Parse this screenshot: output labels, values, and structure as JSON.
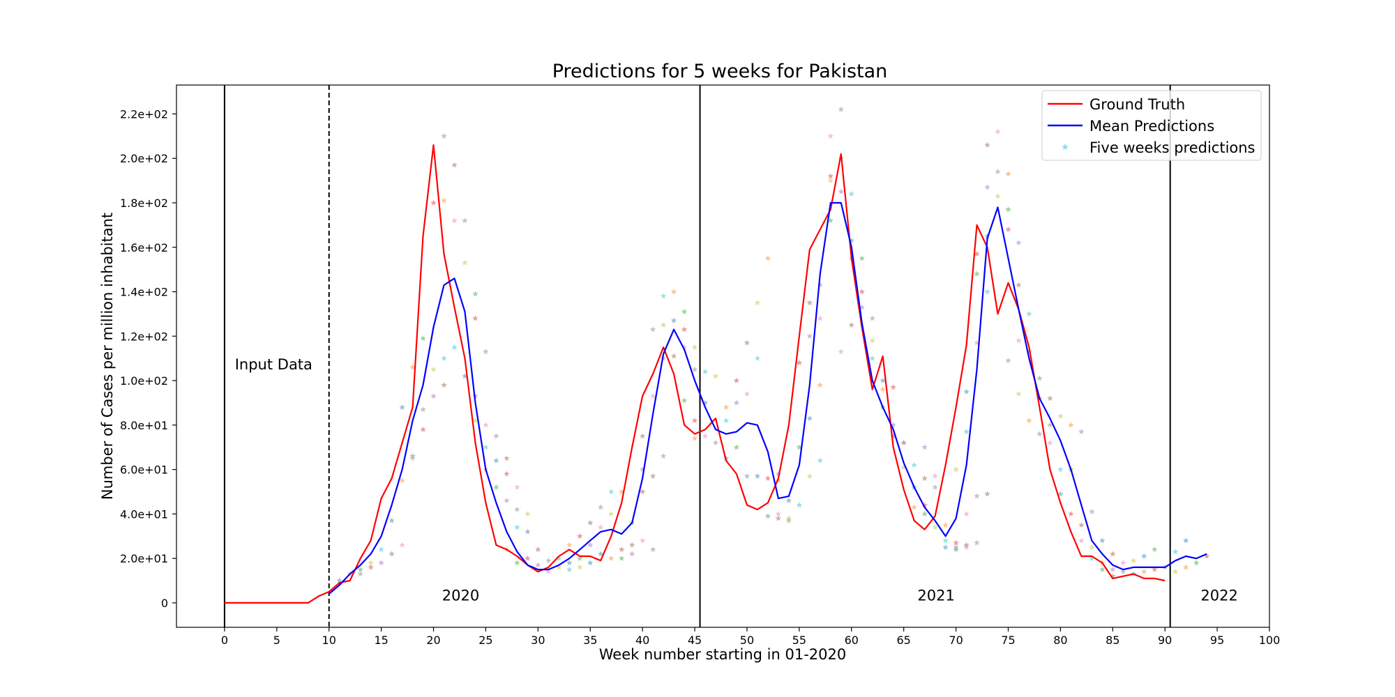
{
  "chart_data": {
    "type": "line",
    "title": "Predictions for 5 weeks for Pakistan",
    "xlabel": "Week number starting in 01-2020",
    "ylabel": "Number of Cases per million inhabitant",
    "xlim": [
      -4.6,
      100
    ],
    "ylim": [
      -11,
      233
    ],
    "xticks": [
      0,
      5,
      10,
      15,
      20,
      25,
      30,
      35,
      40,
      45,
      50,
      55,
      60,
      65,
      70,
      75,
      80,
      85,
      90,
      95,
      100
    ],
    "yticks": [
      0,
      20,
      40,
      60,
      80,
      100,
      120,
      140,
      160,
      180,
      200,
      220
    ],
    "ytick_labels": [
      "0",
      "2.0e+01",
      "4.0e+01",
      "6.0e+01",
      "8.0e+01",
      "1.0e+02",
      "1.2e+02",
      "1.4e+02",
      "1.6e+02",
      "1.8e+02",
      "2.0e+02",
      "2.2e+02"
    ],
    "legend_position": "top-right",
    "legend": [
      "Ground Truth",
      "Mean Predictions",
      "Five weeks predictions"
    ],
    "vlines": [
      {
        "x": 0,
        "style": "solid"
      },
      {
        "x": 10,
        "style": "dashed"
      },
      {
        "x": 45.5,
        "style": "solid"
      },
      {
        "x": 90.5,
        "style": "solid"
      }
    ],
    "annotations": [
      {
        "text": "Input Data",
        "x": 4.7,
        "y": 105
      },
      {
        "text": "2020",
        "x": 22.6,
        "y": 1
      },
      {
        "text": "2021",
        "x": 68.1,
        "y": 1
      },
      {
        "text": "2022",
        "x": 95.2,
        "y": 1
      }
    ],
    "series": [
      {
        "name": "Ground Truth",
        "color": "#ff0000",
        "x": [
          0,
          1,
          2,
          3,
          4,
          5,
          6,
          7,
          8,
          9,
          10,
          11,
          12,
          13,
          14,
          15,
          16,
          17,
          18,
          19,
          20,
          21,
          22,
          23,
          24,
          25,
          26,
          27,
          28,
          29,
          30,
          31,
          32,
          33,
          34,
          35,
          36,
          37,
          38,
          39,
          40,
          41,
          42,
          43,
          44,
          45,
          46,
          47,
          48,
          49,
          50,
          51,
          52,
          53,
          54,
          55,
          56,
          57,
          58,
          59,
          60,
          61,
          62,
          63,
          64,
          65,
          66,
          67,
          68,
          69,
          70,
          71,
          72,
          73,
          74,
          75,
          76,
          77,
          78,
          79,
          80,
          81,
          82,
          83,
          84,
          85,
          86,
          87,
          88,
          89,
          90
        ],
        "values": [
          0,
          0,
          0,
          0,
          0,
          0,
          0,
          0,
          0,
          3,
          5,
          9,
          10,
          20,
          28,
          47,
          56,
          72,
          88,
          165,
          206,
          157,
          133,
          110,
          72,
          45,
          26,
          24,
          21,
          17,
          14,
          16,
          21,
          24,
          21,
          21,
          19,
          30,
          45,
          70,
          93,
          103,
          115,
          103,
          80,
          76,
          78,
          83,
          64,
          58,
          44,
          42,
          45,
          56,
          80,
          120,
          159,
          168,
          177,
          202,
          155,
          124,
          96,
          111,
          70,
          51,
          37,
          33,
          39,
          62,
          88,
          116,
          170,
          160,
          130,
          144,
          132,
          115,
          88,
          60,
          45,
          32,
          21,
          21,
          18,
          11,
          12,
          13,
          11,
          11,
          10
        ]
      },
      {
        "name": "Mean Predictions",
        "color": "#0000ff",
        "x": [
          10,
          11,
          12,
          13,
          14,
          15,
          16,
          17,
          18,
          19,
          20,
          21,
          22,
          23,
          24,
          25,
          26,
          27,
          28,
          29,
          30,
          31,
          32,
          33,
          34,
          35,
          36,
          37,
          38,
          39,
          40,
          41,
          42,
          43,
          44,
          45,
          46,
          47,
          48,
          49,
          50,
          51,
          52,
          53,
          54,
          55,
          56,
          57,
          58,
          59,
          60,
          61,
          62,
          63,
          64,
          65,
          66,
          67,
          68,
          69,
          70,
          71,
          72,
          73,
          74,
          75,
          76,
          77,
          78,
          79,
          80,
          81,
          82,
          83,
          84,
          85,
          86,
          87,
          88,
          89,
          90,
          91,
          92,
          93,
          94
        ],
        "values": [
          4,
          8,
          13,
          17,
          22,
          30,
          44,
          60,
          82,
          98,
          124,
          143,
          146,
          131,
          90,
          60,
          45,
          32,
          23,
          17,
          15,
          15,
          17,
          20,
          24,
          28,
          32,
          33,
          31,
          36,
          56,
          85,
          112,
          123,
          114,
          100,
          88,
          78,
          76,
          77,
          81,
          80,
          68,
          47,
          48,
          62,
          98,
          148,
          180,
          180,
          160,
          126,
          100,
          88,
          78,
          63,
          52,
          43,
          37,
          30,
          38,
          62,
          105,
          164,
          178,
          155,
          132,
          110,
          92,
          83,
          73,
          60,
          44,
          28,
          22,
          17,
          15,
          16,
          16,
          16,
          16,
          19,
          21,
          20,
          22
        ]
      }
    ],
    "scatter_series": {
      "name": "Five weeks predictions",
      "marker": "star",
      "colors": [
        "#1f77b4",
        "#ff7f0e",
        "#2ca02c",
        "#d62728",
        "#9467bd",
        "#8c564b",
        "#e377c2",
        "#7f7f7f",
        "#bcbd22",
        "#17becf"
      ],
      "points": [
        [
          11,
          10
        ],
        [
          12,
          13
        ],
        [
          13,
          15
        ],
        [
          14,
          16
        ],
        [
          15,
          18
        ],
        [
          16,
          22
        ],
        [
          17,
          26
        ],
        [
          13,
          13
        ],
        [
          14,
          18
        ],
        [
          15,
          24
        ],
        [
          16,
          37
        ],
        [
          17,
          55
        ],
        [
          18,
          66
        ],
        [
          19,
          78
        ],
        [
          20,
          93
        ],
        [
          21,
          98
        ],
        [
          18,
          65
        ],
        [
          19,
          87
        ],
        [
          20,
          105
        ],
        [
          21,
          110
        ],
        [
          17,
          88
        ],
        [
          18,
          106
        ],
        [
          19,
          119
        ],
        [
          20,
          180
        ],
        [
          21,
          210
        ],
        [
          22,
          197
        ],
        [
          22,
          172
        ],
        [
          23,
          172
        ],
        [
          23,
          153
        ],
        [
          22,
          115
        ],
        [
          23,
          102
        ],
        [
          21,
          181
        ],
        [
          24,
          139
        ],
        [
          24,
          128
        ],
        [
          25,
          113
        ],
        [
          24,
          93
        ],
        [
          25,
          80
        ],
        [
          26,
          75
        ],
        [
          24,
          82
        ],
        [
          25,
          70
        ],
        [
          26,
          64
        ],
        [
          25,
          60
        ],
        [
          26,
          52
        ],
        [
          27,
          58
        ],
        [
          27,
          46
        ],
        [
          27,
          65
        ],
        [
          28,
          52
        ],
        [
          28,
          42
        ],
        [
          29,
          40
        ],
        [
          28,
          34
        ],
        [
          29,
          32
        ],
        [
          27,
          24
        ],
        [
          28,
          18
        ],
        [
          29,
          20
        ],
        [
          30,
          17
        ],
        [
          30,
          24
        ],
        [
          31,
          14
        ],
        [
          31,
          19
        ],
        [
          32,
          16
        ],
        [
          32,
          20
        ],
        [
          33,
          18
        ],
        [
          33,
          26
        ],
        [
          34,
          20
        ],
        [
          34,
          30
        ],
        [
          35,
          26
        ],
        [
          35,
          36
        ],
        [
          36,
          34
        ],
        [
          36,
          43
        ],
        [
          37,
          40
        ],
        [
          37,
          50
        ],
        [
          36,
          22
        ],
        [
          37,
          20
        ],
        [
          38,
          20
        ],
        [
          38,
          24
        ],
        [
          39,
          22
        ],
        [
          39,
          26
        ],
        [
          40,
          28
        ],
        [
          41,
          24
        ],
        [
          34,
          16
        ],
        [
          33,
          15
        ],
        [
          35,
          18
        ],
        [
          38,
          50
        ],
        [
          39,
          36
        ],
        [
          40,
          50
        ],
        [
          40,
          60
        ],
        [
          40,
          75
        ],
        [
          41,
          93
        ],
        [
          41,
          123
        ],
        [
          42,
          125
        ],
        [
          42,
          138
        ],
        [
          43,
          127
        ],
        [
          43,
          140
        ],
        [
          44,
          131
        ],
        [
          44,
          123
        ],
        [
          42,
          110
        ],
        [
          43,
          111
        ],
        [
          44,
          115
        ],
        [
          45,
          105
        ],
        [
          45,
          115
        ],
        [
          46,
          104
        ],
        [
          46,
          90
        ],
        [
          45,
          74
        ],
        [
          44,
          91
        ],
        [
          45,
          82
        ],
        [
          42,
          66
        ],
        [
          41,
          57
        ],
        [
          46,
          75
        ],
        [
          47,
          72
        ],
        [
          47,
          102
        ],
        [
          48,
          82
        ],
        [
          48,
          65
        ],
        [
          48,
          88
        ],
        [
          49,
          70
        ],
        [
          49,
          100
        ],
        [
          49,
          90
        ],
        [
          50,
          117
        ],
        [
          50,
          94
        ],
        [
          50,
          57
        ],
        [
          51,
          135
        ],
        [
          51,
          110
        ],
        [
          51,
          57
        ],
        [
          52,
          155
        ],
        [
          52,
          39
        ],
        [
          52,
          56
        ],
        [
          53,
          58
        ],
        [
          53,
          38
        ],
        [
          53,
          40
        ],
        [
          54,
          37
        ],
        [
          54,
          38
        ],
        [
          55,
          44
        ],
        [
          54,
          46
        ],
        [
          53,
          55
        ],
        [
          55,
          70
        ],
        [
          55,
          108
        ],
        [
          56,
          120
        ],
        [
          56,
          135
        ],
        [
          57,
          128
        ],
        [
          57,
          143
        ],
        [
          56,
          57
        ],
        [
          57,
          64
        ],
        [
          56,
          83
        ],
        [
          57,
          98
        ],
        [
          58,
          172
        ],
        [
          58,
          192
        ],
        [
          59,
          185
        ],
        [
          59,
          200
        ],
        [
          58,
          210
        ],
        [
          59,
          222
        ],
        [
          58,
          190
        ],
        [
          60,
          184
        ],
        [
          60,
          163
        ],
        [
          60,
          155
        ],
        [
          61,
          155
        ],
        [
          61,
          140
        ],
        [
          61,
          133
        ],
        [
          60,
          125
        ],
        [
          59,
          113
        ],
        [
          62,
          128
        ],
        [
          62,
          118
        ],
        [
          62,
          110
        ],
        [
          63,
          100
        ],
        [
          63,
          96
        ],
        [
          63,
          88
        ],
        [
          64,
          97
        ],
        [
          64,
          80
        ],
        [
          64,
          75
        ],
        [
          65,
          72
        ],
        [
          65,
          72
        ],
        [
          65,
          61
        ],
        [
          66,
          62
        ],
        [
          66,
          52
        ],
        [
          66,
          43
        ],
        [
          67,
          40
        ],
        [
          67,
          44
        ],
        [
          67,
          70
        ],
        [
          67,
          56
        ],
        [
          68,
          57
        ],
        [
          68,
          52
        ],
        [
          68,
          34
        ],
        [
          69,
          28
        ],
        [
          69,
          25
        ],
        [
          69,
          35
        ],
        [
          70,
          24
        ],
        [
          70,
          27
        ],
        [
          70,
          25
        ],
        [
          71,
          26
        ],
        [
          71,
          25
        ],
        [
          72,
          27
        ],
        [
          70,
          60
        ],
        [
          71,
          77
        ],
        [
          71,
          95
        ],
        [
          72,
          117
        ],
        [
          72,
          148
        ],
        [
          72,
          157
        ],
        [
          73,
          187
        ],
        [
          73,
          206
        ],
        [
          74,
          212
        ],
        [
          74,
          194
        ],
        [
          74,
          183
        ],
        [
          73,
          140
        ],
        [
          73,
          165
        ],
        [
          75,
          193
        ],
        [
          75,
          177
        ],
        [
          75,
          168
        ],
        [
          76,
          162
        ],
        [
          76,
          143
        ],
        [
          76,
          118
        ],
        [
          75,
          109
        ],
        [
          76,
          94
        ],
        [
          77,
          130
        ],
        [
          77,
          113
        ],
        [
          77,
          82
        ],
        [
          78,
          101
        ],
        [
          78,
          92
        ],
        [
          78,
          76
        ],
        [
          79,
          92
        ],
        [
          79,
          72
        ],
        [
          79,
          80
        ],
        [
          80,
          84
        ],
        [
          80,
          60
        ],
        [
          80,
          49
        ],
        [
          81,
          80
        ],
        [
          81,
          60
        ],
        [
          81,
          40
        ],
        [
          82,
          77
        ],
        [
          82,
          35
        ],
        [
          82,
          28
        ],
        [
          83,
          41
        ],
        [
          83,
          25
        ],
        [
          83,
          20
        ],
        [
          84,
          28
        ],
        [
          84,
          18
        ],
        [
          84,
          15
        ],
        [
          85,
          22
        ],
        [
          85,
          15
        ],
        [
          85,
          12
        ],
        [
          86,
          18
        ],
        [
          86,
          14
        ],
        [
          87,
          19
        ],
        [
          87,
          13
        ],
        [
          88,
          21
        ],
        [
          88,
          14
        ],
        [
          89,
          24
        ],
        [
          89,
          15
        ],
        [
          72,
          48
        ],
        [
          73,
          49
        ],
        [
          71,
          40
        ],
        [
          90,
          16
        ],
        [
          91,
          14
        ],
        [
          91,
          23
        ],
        [
          92,
          28
        ],
        [
          92,
          16
        ],
        [
          93,
          18
        ],
        [
          94,
          21
        ]
      ]
    }
  }
}
